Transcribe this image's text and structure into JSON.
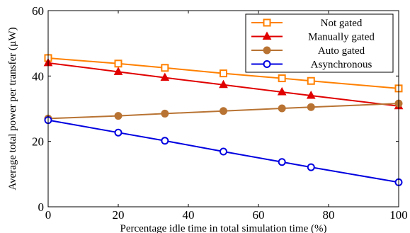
{
  "chart_data": {
    "type": "line",
    "xlabel": "Percentage idle time in total simulation time (%)",
    "ylabel": "Average total power per transfer (µW)",
    "xlim": [
      0,
      100
    ],
    "ylim": [
      0,
      60
    ],
    "x_ticks": [
      "0",
      "20",
      "40",
      "60",
      "80",
      "100"
    ],
    "y_ticks": [
      "0",
      "20",
      "40",
      "60"
    ],
    "grid": false,
    "legend_position": "top-right",
    "series": [
      {
        "name": "Not gated",
        "color": "#ff8000",
        "marker": "square-open",
        "x": [
          0,
          20,
          33.3,
          50,
          66.7,
          75,
          100
        ],
        "y": [
          45.5,
          43.8,
          42.5,
          40.8,
          39.3,
          38.5,
          36.2
        ]
      },
      {
        "name": "Manually gated",
        "color": "#e00000",
        "marker": "triangle",
        "x": [
          0,
          20,
          33.3,
          50,
          66.7,
          75,
          100
        ],
        "y": [
          44.0,
          41.3,
          39.5,
          37.3,
          35.1,
          34.0,
          30.8
        ]
      },
      {
        "name": "Auto gated",
        "color": "#b87333",
        "marker": "circle-filled",
        "x": [
          0,
          20,
          33.3,
          50,
          66.7,
          75,
          100
        ],
        "y": [
          27.0,
          27.8,
          28.5,
          29.3,
          30.1,
          30.5,
          31.6
        ]
      },
      {
        "name": "Asynchronous",
        "color": "#0000e0",
        "marker": "circle-open",
        "x": [
          0,
          20,
          33.3,
          50,
          66.7,
          75,
          100
        ],
        "y": [
          26.5,
          22.7,
          20.2,
          16.9,
          13.7,
          12.1,
          7.5
        ]
      }
    ]
  }
}
